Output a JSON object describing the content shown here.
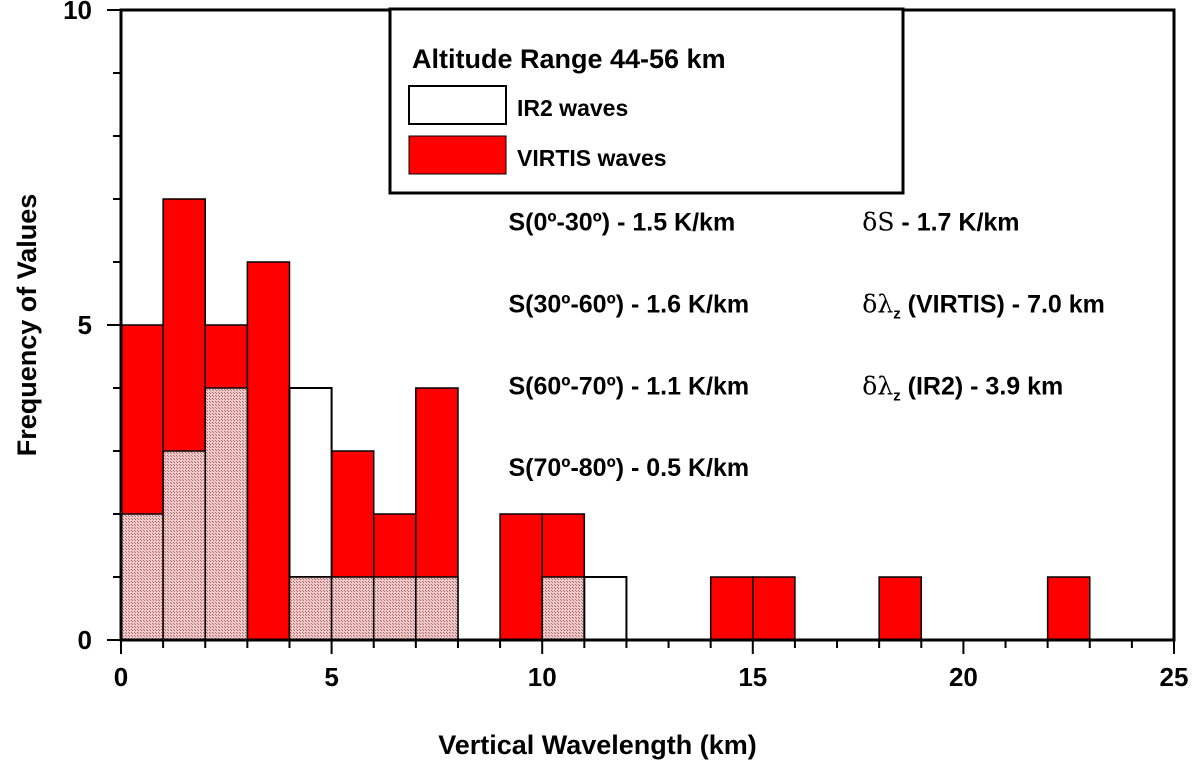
{
  "chart_data": {
    "type": "bar",
    "subtype": "overlapping histogram",
    "xlabel": "Vertical Wavelength (km)",
    "ylabel": "Frequency of Values",
    "xlim": [
      0,
      25
    ],
    "ylim": [
      0,
      10
    ],
    "x_ticks": [
      "0",
      "5",
      "10",
      "15",
      "20",
      "25"
    ],
    "y_ticks": [
      "0",
      "5",
      "10"
    ],
    "bin_width_km": 1,
    "grid": false,
    "legend": {
      "position": "top-center",
      "title": "Altitude Range 44-56 km",
      "entries": [
        {
          "label": "IR2 waves",
          "color": "#ffffff"
        },
        {
          "label": "VIRTIS waves",
          "color": "#ff0000"
        }
      ]
    },
    "overlap_pattern_color": "#a06b6b",
    "series": [
      {
        "name": "IR2 waves",
        "color": "#ffffff",
        "bins": [
          {
            "x0": 0,
            "x1": 1,
            "count": 2
          },
          {
            "x0": 1,
            "x1": 2,
            "count": 3
          },
          {
            "x0": 2,
            "x1": 3,
            "count": 4
          },
          {
            "x0": 4,
            "x1": 5,
            "count": 4
          },
          {
            "x0": 5,
            "x1": 6,
            "count": 1
          },
          {
            "x0": 6,
            "x1": 7,
            "count": 1
          },
          {
            "x0": 7,
            "x1": 8,
            "count": 1
          },
          {
            "x0": 10,
            "x1": 11,
            "count": 1
          },
          {
            "x0": 11,
            "x1": 12,
            "count": 1
          }
        ]
      },
      {
        "name": "VIRTIS waves",
        "color": "#ff0000",
        "bins": [
          {
            "x0": 0,
            "x1": 1,
            "count": 5
          },
          {
            "x0": 1,
            "x1": 2,
            "count": 7
          },
          {
            "x0": 2,
            "x1": 3,
            "count": 5
          },
          {
            "x0": 3,
            "x1": 4,
            "count": 6
          },
          {
            "x0": 4,
            "x1": 5,
            "count": 1
          },
          {
            "x0": 5,
            "x1": 6,
            "count": 3
          },
          {
            "x0": 6,
            "x1": 7,
            "count": 2
          },
          {
            "x0": 7,
            "x1": 8,
            "count": 4
          },
          {
            "x0": 9,
            "x1": 10,
            "count": 2
          },
          {
            "x0": 10,
            "x1": 11,
            "count": 2
          },
          {
            "x0": 14,
            "x1": 15,
            "count": 1
          },
          {
            "x0": 15,
            "x1": 16,
            "count": 1
          },
          {
            "x0": 18,
            "x1": 19,
            "count": 1
          },
          {
            "x0": 22,
            "x1": 23,
            "count": 1
          }
        ]
      }
    ],
    "annotations": [
      {
        "id": "s1",
        "text": "S(0º-30º) - 1.5 K/km",
        "x": 9.2,
        "y": 6.5
      },
      {
        "id": "s2",
        "text": "S(30º-60º) - 1.6 K/km",
        "x": 9.2,
        "y": 5.2
      },
      {
        "id": "s3",
        "text": "S(60º-70º) - 1.1 K/km",
        "x": 9.2,
        "y": 3.9
      },
      {
        "id": "s4",
        "text": "S(70º-80º) - 0.5 K/km",
        "x": 9.2,
        "y": 2.6
      },
      {
        "id": "d1",
        "symbol": "δS",
        "text": " - 1.7 K/km",
        "x": 17.6,
        "y": 6.5
      },
      {
        "id": "d2",
        "symbol": "δλ",
        "sub": "z",
        "text": " (VIRTIS) - 7.0 km",
        "x": 17.6,
        "y": 5.2
      },
      {
        "id": "d3",
        "symbol": "δλ",
        "sub": "z",
        "text": " (IR2) - 3.9 km",
        "x": 17.6,
        "y": 3.9
      }
    ]
  }
}
